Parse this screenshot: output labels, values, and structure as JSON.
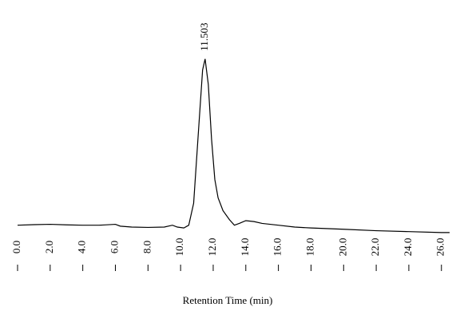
{
  "chart_data": {
    "type": "line",
    "xlabel": "Retention Time (min)",
    "peak_label": "11.503",
    "peak_index": 18,
    "color": "#000000",
    "x": [
      0,
      1,
      2,
      3,
      4,
      5,
      6,
      6.3,
      7,
      8,
      9,
      9.5,
      9.8,
      10.2,
      10.5,
      10.8,
      11.1,
      11.35,
      11.503,
      11.7,
      11.9,
      12.1,
      12.3,
      12.6,
      13,
      13.3,
      13.6,
      14,
      14.5,
      15,
      16,
      17,
      18,
      20,
      22,
      24,
      26,
      26.5
    ],
    "values": [
      3,
      3.3,
      3.5,
      3.2,
      3,
      3,
      3.5,
      2.5,
      2,
      1.8,
      2,
      3,
      2,
      1.5,
      3,
      15,
      55,
      88,
      94,
      80,
      50,
      28,
      18,
      11,
      6,
      3,
      4,
      5.5,
      5,
      4,
      3,
      2,
      1.5,
      0.8,
      0,
      -0.5,
      -1,
      -1
    ],
    "xlim": [
      0,
      26.6
    ],
    "ylim": [
      -5,
      100
    ],
    "xticks": [
      {
        "value": 0,
        "label": "0.0"
      },
      {
        "value": 2,
        "label": "2.0"
      },
      {
        "value": 4,
        "label": "4.0"
      },
      {
        "value": 6,
        "label": "6.0"
      },
      {
        "value": 8,
        "label": "8.0"
      },
      {
        "value": 10,
        "label": "10.0"
      },
      {
        "value": 12,
        "label": "12.0"
      },
      {
        "value": 14,
        "label": "14.0"
      },
      {
        "value": 16,
        "label": "16.0"
      },
      {
        "value": 18,
        "label": "18.0"
      },
      {
        "value": 20,
        "label": "20.0"
      },
      {
        "value": 22,
        "label": "22.0"
      },
      {
        "value": 24,
        "label": "24.0"
      },
      {
        "value": 26,
        "label": "26.0"
      }
    ]
  }
}
